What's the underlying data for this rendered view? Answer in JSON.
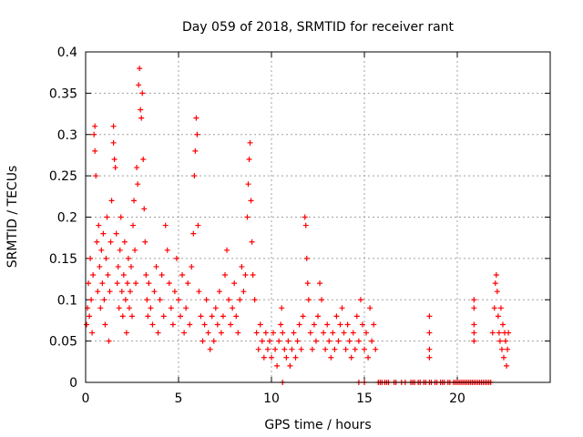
{
  "chart_data": {
    "type": "scatter",
    "title": "Day 059 of 2018, SRMTID for receiver rant",
    "xlabel": "GPS time / hours",
    "ylabel": "SRMTID / TECUs",
    "xlim": [
      0,
      25
    ],
    "ylim": [
      0,
      0.4
    ],
    "xticks": [
      0,
      5,
      10,
      15,
      20
    ],
    "xtick_labels": [
      "0",
      "5",
      "10",
      "15",
      "20"
    ],
    "yticks": [
      0,
      0.05,
      0.1,
      0.15,
      0.2,
      0.25,
      0.3,
      0.35,
      0.4
    ],
    "ytick_labels": [
      "0",
      "0.05",
      "0.1",
      "0.15",
      "0.2",
      "0.25",
      "0.3",
      "0.35",
      "0.4"
    ],
    "grid": true,
    "marker": "+",
    "color": "#ff0000",
    "series": [
      {
        "name": "SRMTID",
        "points": [
          [
            0.05,
            0.07
          ],
          [
            0.1,
            0.09
          ],
          [
            0.15,
            0.12
          ],
          [
            0.2,
            0.08
          ],
          [
            0.25,
            0.15
          ],
          [
            0.3,
            0.1
          ],
          [
            0.35,
            0.06
          ],
          [
            0.4,
            0.13
          ],
          [
            0.45,
            0.3
          ],
          [
            0.5,
            0.31
          ],
          [
            0.5,
            0.28
          ],
          [
            0.55,
            0.25
          ],
          [
            0.6,
            0.17
          ],
          [
            0.65,
            0.11
          ],
          [
            0.7,
            0.19
          ],
          [
            0.75,
            0.14
          ],
          [
            0.8,
            0.09
          ],
          [
            0.85,
            0.16
          ],
          [
            0.9,
            0.12
          ],
          [
            0.95,
            0.18
          ],
          [
            1.0,
            0.1
          ],
          [
            1.05,
            0.07
          ],
          [
            1.1,
            0.15
          ],
          [
            1.15,
            0.2
          ],
          [
            1.2,
            0.13
          ],
          [
            1.25,
            0.05
          ],
          [
            1.3,
            0.11
          ],
          [
            1.35,
            0.17
          ],
          [
            1.4,
            0.22
          ],
          [
            1.5,
            0.31
          ],
          [
            1.5,
            0.29
          ],
          [
            1.55,
            0.27
          ],
          [
            1.6,
            0.26
          ],
          [
            1.65,
            0.18
          ],
          [
            1.7,
            0.12
          ],
          [
            1.75,
            0.14
          ],
          [
            1.8,
            0.09
          ],
          [
            1.85,
            0.16
          ],
          [
            1.9,
            0.2
          ],
          [
            1.95,
            0.11
          ],
          [
            2.0,
            0.08
          ],
          [
            2.05,
            0.13
          ],
          [
            2.1,
            0.17
          ],
          [
            2.15,
            0.1
          ],
          [
            2.2,
            0.06
          ],
          [
            2.25,
            0.12
          ],
          [
            2.3,
            0.15
          ],
          [
            2.35,
            0.09
          ],
          [
            2.4,
            0.11
          ],
          [
            2.45,
            0.14
          ],
          [
            2.5,
            0.08
          ],
          [
            2.55,
            0.19
          ],
          [
            2.6,
            0.22
          ],
          [
            2.65,
            0.16
          ],
          [
            2.7,
            0.12
          ],
          [
            2.75,
            0.26
          ],
          [
            2.8,
            0.24
          ],
          [
            2.85,
            0.36
          ],
          [
            2.9,
            0.38
          ],
          [
            2.95,
            0.33
          ],
          [
            3.0,
            0.32
          ],
          [
            3.05,
            0.35
          ],
          [
            3.1,
            0.27
          ],
          [
            3.15,
            0.21
          ],
          [
            3.2,
            0.17
          ],
          [
            3.25,
            0.13
          ],
          [
            3.3,
            0.1
          ],
          [
            3.35,
            0.08
          ],
          [
            3.4,
            0.12
          ],
          [
            3.5,
            0.09
          ],
          [
            3.6,
            0.07
          ],
          [
            3.7,
            0.11
          ],
          [
            3.8,
            0.14
          ],
          [
            3.9,
            0.06
          ],
          [
            4.0,
            0.1
          ],
          [
            4.1,
            0.13
          ],
          [
            4.2,
            0.08
          ],
          [
            4.3,
            0.19
          ],
          [
            4.4,
            0.16
          ],
          [
            4.5,
            0.12
          ],
          [
            4.6,
            0.09
          ],
          [
            4.7,
            0.07
          ],
          [
            4.8,
            0.11
          ],
          [
            4.9,
            0.15
          ],
          [
            5.0,
            0.1
          ],
          [
            5.1,
            0.08
          ],
          [
            5.2,
            0.13
          ],
          [
            5.3,
            0.06
          ],
          [
            5.4,
            0.09
          ],
          [
            5.5,
            0.12
          ],
          [
            5.6,
            0.07
          ],
          [
            5.7,
            0.14
          ],
          [
            5.8,
            0.18
          ],
          [
            5.85,
            0.25
          ],
          [
            5.9,
            0.28
          ],
          [
            5.95,
            0.32
          ],
          [
            6.0,
            0.3
          ],
          [
            6.05,
            0.19
          ],
          [
            6.1,
            0.11
          ],
          [
            6.2,
            0.08
          ],
          [
            6.3,
            0.05
          ],
          [
            6.4,
            0.07
          ],
          [
            6.5,
            0.1
          ],
          [
            6.6,
            0.06
          ],
          [
            6.7,
            0.04
          ],
          [
            6.8,
            0.08
          ],
          [
            6.9,
            0.05
          ],
          [
            7.0,
            0.09
          ],
          [
            7.1,
            0.07
          ],
          [
            7.2,
            0.11
          ],
          [
            7.3,
            0.06
          ],
          [
            7.4,
            0.08
          ],
          [
            7.5,
            0.13
          ],
          [
            7.6,
            0.16
          ],
          [
            7.7,
            0.1
          ],
          [
            7.8,
            0.07
          ],
          [
            7.9,
            0.09
          ],
          [
            8.0,
            0.12
          ],
          [
            8.1,
            0.08
          ],
          [
            8.2,
            0.06
          ],
          [
            8.3,
            0.1
          ],
          [
            8.4,
            0.14
          ],
          [
            8.5,
            0.11
          ],
          [
            8.6,
            0.13
          ],
          [
            8.7,
            0.2
          ],
          [
            8.75,
            0.24
          ],
          [
            8.8,
            0.27
          ],
          [
            8.85,
            0.29
          ],
          [
            8.9,
            0.22
          ],
          [
            8.95,
            0.17
          ],
          [
            9.0,
            0.13
          ],
          [
            9.1,
            0.1
          ],
          [
            9.2,
            0.06
          ],
          [
            9.3,
            0.04
          ],
          [
            9.4,
            0.07
          ],
          [
            9.5,
            0.05
          ],
          [
            9.6,
            0.03
          ],
          [
            9.7,
            0.06
          ],
          [
            9.8,
            0.04
          ],
          [
            9.9,
            0.05
          ],
          [
            10.0,
            0.03
          ],
          [
            10.1,
            0.06
          ],
          [
            10.2,
            0.04
          ],
          [
            10.3,
            0.02
          ],
          [
            10.4,
            0.05
          ],
          [
            10.5,
            0.07
          ],
          [
            10.55,
            0.09
          ],
          [
            10.6,
            0.06
          ],
          [
            10.7,
            0.04
          ],
          [
            10.8,
            0.03
          ],
          [
            10.9,
            0.05
          ],
          [
            11.0,
            0.02
          ],
          [
            11.1,
            0.04
          ],
          [
            11.2,
            0.06
          ],
          [
            11.3,
            0.03
          ],
          [
            11.4,
            0.05
          ],
          [
            11.5,
            0.07
          ],
          [
            11.6,
            0.04
          ],
          [
            11.7,
            0.08
          ],
          [
            11.8,
            0.2
          ],
          [
            11.85,
            0.19
          ],
          [
            11.9,
            0.15
          ],
          [
            11.95,
            0.12
          ],
          [
            12.0,
            0.1
          ],
          [
            12.1,
            0.06
          ],
          [
            12.2,
            0.04
          ],
          [
            12.3,
            0.07
          ],
          [
            12.4,
            0.05
          ],
          [
            12.5,
            0.08
          ],
          [
            12.6,
            0.12
          ],
          [
            12.7,
            0.1
          ],
          [
            12.8,
            0.06
          ],
          [
            12.9,
            0.04
          ],
          [
            13.0,
            0.07
          ],
          [
            13.1,
            0.05
          ],
          [
            13.2,
            0.03
          ],
          [
            13.3,
            0.06
          ],
          [
            13.4,
            0.04
          ],
          [
            13.5,
            0.08
          ],
          [
            13.6,
            0.05
          ],
          [
            13.7,
            0.07
          ],
          [
            13.8,
            0.09
          ],
          [
            13.9,
            0.06
          ],
          [
            14.0,
            0.04
          ],
          [
            14.1,
            0.07
          ],
          [
            14.2,
            0.05
          ],
          [
            14.3,
            0.03
          ],
          [
            14.4,
            0.06
          ],
          [
            14.5,
            0.04
          ],
          [
            14.6,
            0.08
          ],
          [
            14.7,
            0.05
          ],
          [
            14.8,
            0.1
          ],
          [
            14.9,
            0.07
          ],
          [
            15.0,
            0.04
          ],
          [
            15.1,
            0.06
          ],
          [
            15.2,
            0.03
          ],
          [
            15.3,
            0.09
          ],
          [
            15.4,
            0.05
          ],
          [
            15.5,
            0.07
          ],
          [
            15.6,
            0.04
          ],
          [
            10.6,
            0.0
          ],
          [
            14.7,
            0.0
          ],
          [
            15.0,
            0.0
          ],
          [
            15.75,
            0.0
          ],
          [
            15.85,
            0.0
          ],
          [
            15.95,
            0.0
          ],
          [
            16.1,
            0.0
          ],
          [
            16.2,
            0.0
          ],
          [
            16.3,
            0.0
          ],
          [
            16.6,
            0.0
          ],
          [
            16.7,
            0.0
          ],
          [
            17.0,
            0.0
          ],
          [
            17.2,
            0.0
          ],
          [
            17.5,
            0.0
          ],
          [
            17.6,
            0.0
          ],
          [
            17.7,
            0.0
          ],
          [
            17.9,
            0.0
          ],
          [
            18.0,
            0.0
          ],
          [
            18.2,
            0.0
          ],
          [
            18.3,
            0.0
          ],
          [
            18.5,
            0.0
          ],
          [
            18.6,
            0.0
          ],
          [
            18.8,
            0.0
          ],
          [
            18.9,
            0.0
          ],
          [
            19.1,
            0.0
          ],
          [
            19.2,
            0.0
          ],
          [
            19.3,
            0.0
          ],
          [
            19.5,
            0.0
          ],
          [
            19.6,
            0.0
          ],
          [
            19.8,
            0.0
          ],
          [
            19.9,
            0.0
          ],
          [
            20.0,
            0.0
          ],
          [
            20.1,
            0.0
          ],
          [
            20.2,
            0.0
          ],
          [
            20.3,
            0.0
          ],
          [
            20.4,
            0.0
          ],
          [
            20.5,
            0.0
          ],
          [
            20.6,
            0.0
          ],
          [
            20.7,
            0.0
          ],
          [
            20.8,
            0.0
          ],
          [
            20.9,
            0.0
          ],
          [
            21.0,
            0.0
          ],
          [
            21.1,
            0.0
          ],
          [
            21.2,
            0.0
          ],
          [
            21.3,
            0.0
          ],
          [
            21.4,
            0.0
          ],
          [
            21.5,
            0.0
          ],
          [
            21.6,
            0.0
          ],
          [
            21.7,
            0.0
          ],
          [
            21.8,
            0.0
          ],
          [
            18.5,
            0.08
          ],
          [
            18.5,
            0.06
          ],
          [
            18.5,
            0.04
          ],
          [
            18.5,
            0.03
          ],
          [
            20.9,
            0.1
          ],
          [
            20.9,
            0.09
          ],
          [
            20.9,
            0.06
          ],
          [
            20.9,
            0.05
          ],
          [
            20.9,
            0.07
          ],
          [
            21.9,
            0.06
          ],
          [
            22.0,
            0.09
          ],
          [
            22.05,
            0.12
          ],
          [
            22.1,
            0.13
          ],
          [
            22.15,
            0.11
          ],
          [
            22.2,
            0.08
          ],
          [
            22.25,
            0.06
          ],
          [
            22.3,
            0.05
          ],
          [
            22.35,
            0.09
          ],
          [
            22.4,
            0.04
          ],
          [
            22.45,
            0.07
          ],
          [
            22.5,
            0.03
          ],
          [
            22.55,
            0.06
          ],
          [
            22.6,
            0.05
          ],
          [
            22.65,
            0.02
          ],
          [
            22.7,
            0.04
          ],
          [
            22.75,
            0.06
          ]
        ]
      }
    ]
  }
}
